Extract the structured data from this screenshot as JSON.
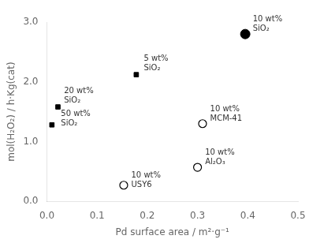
{
  "chart_data": {
    "type": "scatter",
    "xlabel": "Pd surface area / m²·g⁻¹",
    "ylabel": "mol(H₂O₂) / h·Kg(cat)",
    "xlim": [
      0.0,
      0.5
    ],
    "ylim": [
      0.0,
      3.0
    ],
    "xticks": [
      {
        "value": 0,
        "label": "0.0"
      },
      0.1,
      0.2,
      0.3,
      0.4,
      0.5
    ],
    "yticks": [
      {
        "value": 0,
        "label": "0.0"
      },
      {
        "value": 1,
        "label": "1.0"
      },
      {
        "value": 2,
        "label": "2.0"
      },
      {
        "value": 3,
        "label": "3.0"
      }
    ],
    "grid": false,
    "series": [
      {
        "marker": "square",
        "color": "black",
        "x": [
          0.022,
          0.01,
          0.178
        ],
        "y": [
          1.58,
          1.28,
          2.12
        ]
      },
      {
        "marker": "circle",
        "color": "black",
        "x": [
          0.395
        ],
        "y": [
          2.8
        ]
      },
      {
        "marker": "open_circle",
        "color": "black",
        "x": [
          0.153,
          0.3,
          0.31
        ],
        "y": [
          0.27,
          0.57,
          1.3
        ]
      }
    ],
    "annotations": [
      {
        "text": "20 wt%\nSiO₂",
        "x": 0.034,
        "y": 1.62
      },
      {
        "text": "50 wt%\nSiO₂",
        "x": 0.028,
        "y": 1.24
      },
      {
        "text": "5 wt%\nSiO₂",
        "x": 0.193,
        "y": 2.16
      },
      {
        "text": "10 wt%\nSiO₂",
        "x": 0.41,
        "y": 2.82
      },
      {
        "text": "10 wt%\nUSY6",
        "x": 0.168,
        "y": 0.21
      },
      {
        "text": "10 wt%\nAl₂O₃",
        "x": 0.315,
        "y": 0.59
      },
      {
        "text": "10 wt%\nMCM-41",
        "x": 0.325,
        "y": 1.32
      }
    ]
  }
}
